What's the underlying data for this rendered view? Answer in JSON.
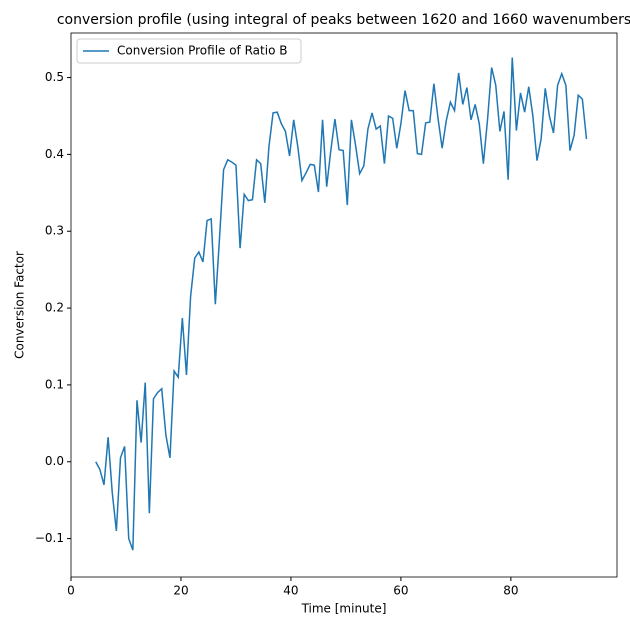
{
  "chart_data": {
    "type": "line",
    "title": "conversion profile (using integral of peaks between 1620 and 1660 wavenumbers",
    "xlabel": "Time [minute]",
    "ylabel": "Conversion Factor",
    "x": [
      4.5,
      5.25,
      6,
      6.75,
      7.5,
      8.25,
      9,
      9.75,
      10.5,
      11.25,
      12,
      12.75,
      13.5,
      14.25,
      15,
      15.75,
      16.5,
      17.25,
      18,
      18.75,
      19.5,
      20.25,
      21,
      21.75,
      22.5,
      23.25,
      24,
      24.75,
      25.5,
      26.25,
      27,
      27.75,
      28.5,
      29.25,
      30,
      30.75,
      31.5,
      32.25,
      33,
      33.75,
      34.5,
      35.25,
      36,
      36.75,
      37.5,
      38.25,
      39,
      39.75,
      40.5,
      41.25,
      42,
      42.75,
      43.5,
      44.25,
      45,
      45.75,
      46.5,
      47.25,
      48,
      48.75,
      49.5,
      50.25,
      51,
      51.75,
      52.5,
      53.25,
      54,
      54.75,
      55.5,
      56.25,
      57,
      57.75,
      58.5,
      59.25,
      60,
      60.75,
      61.5,
      62.25,
      63,
      63.75,
      64.5,
      65.25,
      66,
      66.75,
      67.5,
      68.25,
      69,
      69.75,
      70.5,
      71.25,
      72,
      72.75,
      73.5,
      74.25,
      75,
      75.75,
      76.5,
      77.25,
      78,
      78.75,
      79.5,
      80.25,
      81,
      81.75,
      82.5,
      83.25,
      84,
      84.75,
      85.5,
      86.25,
      87,
      87.75,
      88.5,
      89.25,
      90,
      90.75,
      91.5,
      92.25,
      93,
      93.75
    ],
    "series": [
      {
        "name": "Conversion Profile of Ratio B",
        "color": "#1f77b4",
        "values": [
          0.0,
          -0.01,
          -0.03,
          0.032,
          -0.04,
          -0.09,
          0.005,
          0.02,
          -0.1,
          -0.115,
          0.08,
          0.025,
          0.103,
          -0.067,
          0.082,
          0.09,
          0.095,
          0.035,
          0.005,
          0.118,
          0.11,
          0.187,
          0.113,
          0.215,
          0.265,
          0.273,
          0.26,
          0.314,
          0.316,
          0.205,
          0.29,
          0.38,
          0.393,
          0.39,
          0.386,
          0.278,
          0.348,
          0.34,
          0.341,
          0.393,
          0.388,
          0.337,
          0.41,
          0.454,
          0.455,
          0.44,
          0.43,
          0.398,
          0.445,
          0.41,
          0.366,
          0.376,
          0.387,
          0.386,
          0.351,
          0.445,
          0.358,
          0.405,
          0.446,
          0.406,
          0.405,
          0.334,
          0.445,
          0.412,
          0.375,
          0.385,
          0.433,
          0.454,
          0.433,
          0.437,
          0.388,
          0.45,
          0.447,
          0.408,
          0.44,
          0.483,
          0.457,
          0.457,
          0.401,
          0.4,
          0.441,
          0.442,
          0.492,
          0.447,
          0.408,
          0.444,
          0.468,
          0.457,
          0.506,
          0.465,
          0.487,
          0.445,
          0.465,
          0.44,
          0.388,
          0.445,
          0.513,
          0.49,
          0.43,
          0.456,
          0.367,
          0.526,
          0.431,
          0.48,
          0.455,
          0.488,
          0.45,
          0.392,
          0.42,
          0.486,
          0.45,
          0.428,
          0.49,
          0.505,
          0.49,
          0.405,
          0.425,
          0.477,
          0.472,
          0.42
        ]
      }
    ],
    "xlim": [
      0,
      99.3
    ],
    "ylim": [
      -0.15,
      0.558
    ],
    "xticks": [
      0,
      20,
      40,
      60,
      80
    ],
    "yticks": [
      {
        "value": -0.1,
        "label": "−0.1"
      },
      {
        "value": 0.0,
        "label": "0.0"
      },
      {
        "value": 0.1,
        "label": "0.1"
      },
      {
        "value": 0.2,
        "label": "0.2"
      },
      {
        "value": 0.3,
        "label": "0.3"
      },
      {
        "value": 0.4,
        "label": "0.4"
      },
      {
        "value": 0.5,
        "label": "0.5"
      }
    ],
    "legend": "upper left"
  }
}
